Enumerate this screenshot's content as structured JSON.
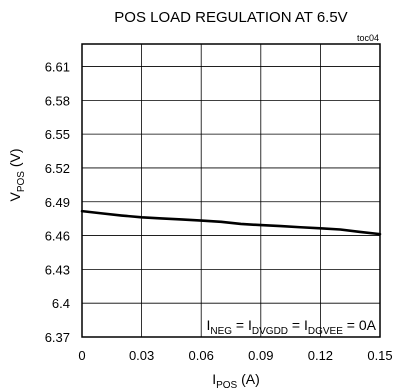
{
  "chart_data": {
    "type": "line",
    "title": "POS LOAD REGULATION AT 6.5V",
    "tag": "toc04",
    "xlabel": {
      "main": "I",
      "sub": "POS",
      "unit": " (A)"
    },
    "ylabel": {
      "main": "V",
      "sub": "POS",
      "unit": " (V)"
    },
    "xlim": [
      0,
      0.15
    ],
    "ylim": [
      6.37,
      6.63
    ],
    "x_ticks": [
      "0",
      "0.03",
      "0.06",
      "0.09",
      "0.12",
      "0.15"
    ],
    "y_ticks": [
      "6.37",
      "6.4",
      "6.43",
      "6.46",
      "6.49",
      "6.52",
      "6.55",
      "6.58",
      "6.61"
    ],
    "grid": true,
    "annotation": {
      "parts": [
        {
          "t": "I",
          "sub": "NEG"
        },
        {
          "t": " = I",
          "sub": "DVGDD"
        },
        {
          "t": " = I",
          "sub": "DGVEE"
        },
        {
          "t": " = 0A",
          "sub": ""
        }
      ]
    },
    "series": [
      {
        "x": [
          0,
          0.01,
          0.02,
          0.03,
          0.04,
          0.05,
          0.06,
          0.07,
          0.08,
          0.09,
          0.1,
          0.11,
          0.12,
          0.13,
          0.14,
          0.15
        ],
        "y": [
          6.4817,
          6.4797,
          6.4778,
          6.4762,
          6.4752,
          6.4743,
          6.4733,
          6.4722,
          6.4703,
          6.4693,
          6.4684,
          6.4674,
          6.4664,
          6.4654,
          6.4632,
          6.4613
        ]
      }
    ]
  }
}
